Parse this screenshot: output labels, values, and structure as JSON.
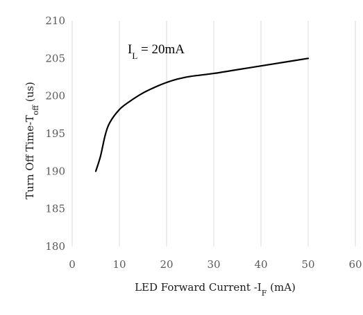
{
  "chart_data": {
    "type": "line",
    "title": "",
    "xlabel": {
      "main": "LED Forward Current -I",
      "sub": "F",
      "suffix": " (mA)"
    },
    "ylabel": {
      "main": "Turn Off Time-T",
      "sub": "off",
      "suffix": " (us)"
    },
    "xlim": [
      0,
      60
    ],
    "ylim": [
      180,
      210
    ],
    "xticks": [
      0,
      10,
      20,
      30,
      40,
      50,
      60
    ],
    "yticks": [
      180,
      185,
      190,
      195,
      200,
      205,
      210
    ],
    "grid": "vertical",
    "annotation": {
      "main": "I",
      "sub": "L",
      "suffix": " = 20mA"
    },
    "series": [
      {
        "color": "#000000",
        "x": [
          5,
          6,
          7,
          8,
          10,
          12,
          15,
          18,
          20,
          22,
          25,
          30,
          35,
          40,
          45,
          50
        ],
        "y": [
          190,
          192,
          194.8,
          196.5,
          198.2,
          199.2,
          200.4,
          201.3,
          201.8,
          202.2,
          202.6,
          203.0,
          203.5,
          204.0,
          204.5,
          205.0
        ]
      }
    ]
  }
}
